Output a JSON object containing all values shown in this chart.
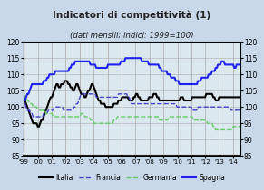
{
  "title": "Indicatori di competitività (1)",
  "subtitle": "(dati mensili; indici: 1999=100)",
  "bg_color": "#c8d8e8",
  "plot_bg_color": "#dce8f0",
  "ylim": [
    85,
    120
  ],
  "yticks": [
    85,
    90,
    95,
    100,
    105,
    110,
    115,
    120
  ],
  "years": [
    "'99",
    "'00",
    "'01",
    "'02",
    "'03",
    "'04",
    "'05",
    "'06",
    "'07",
    "'08",
    "'09",
    "'10",
    "'11",
    "'12",
    "'13",
    "'14"
  ],
  "legend": [
    {
      "label": "Italia",
      "color": "#000000",
      "ls": "-",
      "lw": 1.5
    },
    {
      "label": "Francia",
      "color": "#4444cc",
      "ls": "--",
      "lw": 1.0
    },
    {
      "label": "Germania",
      "color": "#66cc66",
      "ls": "--",
      "lw": 1.0
    },
    {
      "label": "Spagna",
      "color": "#2222ee",
      "ls": "-",
      "lw": 1.5
    }
  ],
  "italia": [
    103,
    102,
    101,
    100,
    99,
    98,
    97,
    96,
    95,
    95,
    95,
    95,
    94,
    94,
    95,
    96,
    96,
    97,
    98,
    99,
    100,
    101,
    102,
    103,
    103,
    104,
    105,
    106,
    107,
    107,
    106,
    106,
    107,
    107,
    107,
    108,
    108,
    108,
    107,
    107,
    106,
    106,
    105,
    105,
    106,
    107,
    107,
    106,
    105,
    104,
    104,
    104,
    103,
    103,
    104,
    105,
    105,
    106,
    107,
    107,
    106,
    105,
    104,
    103,
    102,
    102,
    101,
    101,
    101,
    101,
    100,
    100,
    100,
    100,
    100,
    100,
    100,
    101,
    101,
    101,
    101,
    102,
    102,
    102,
    103,
    103,
    103,
    103,
    103,
    103,
    102,
    102,
    102,
    102,
    103,
    103,
    104,
    104,
    103,
    103,
    102,
    102,
    102,
    102,
    102,
    102,
    102,
    103,
    103,
    103,
    103,
    104,
    104,
    104,
    103,
    103,
    102,
    102,
    102,
    102,
    102,
    102,
    102,
    102,
    102,
    102,
    102,
    102,
    102,
    102,
    102,
    102,
    102,
    102,
    103,
    103,
    103,
    102,
    102,
    102,
    102,
    102,
    102,
    102,
    103,
    103,
    103,
    103,
    103,
    103,
    103,
    103,
    103,
    103,
    103,
    103,
    104,
    104,
    104,
    104,
    104,
    104,
    103,
    103,
    102,
    102,
    102,
    103,
    103,
    103,
    103,
    103,
    103,
    103,
    103,
    103,
    103,
    103,
    103,
    103,
    103,
    103,
    103,
    103,
    103,
    103,
    103,
    103,
    103,
    103,
    103,
    103,
    103,
    103,
    103,
    103
  ],
  "francia": [
    103,
    101,
    100,
    99,
    99,
    99,
    98,
    98,
    97,
    97,
    97,
    97,
    97,
    97,
    97,
    97,
    97,
    98,
    98,
    98,
    98,
    99,
    99,
    99,
    99,
    99,
    100,
    100,
    100,
    100,
    100,
    100,
    100,
    100,
    99,
    99,
    99,
    99,
    99,
    99,
    99,
    99,
    99,
    100,
    100,
    101,
    101,
    102,
    103,
    104,
    104,
    104,
    104,
    104,
    104,
    104,
    104,
    104,
    104,
    104,
    104,
    104,
    103,
    103,
    103,
    103,
    103,
    103,
    103,
    103,
    103,
    103,
    103,
    103,
    103,
    103,
    103,
    103,
    103,
    103,
    103,
    104,
    104,
    104,
    104,
    104,
    104,
    104,
    104,
    103,
    103,
    102,
    101,
    101,
    101,
    101,
    101,
    101,
    101,
    101,
    101,
    101,
    101,
    101,
    101,
    101,
    101,
    101,
    101,
    101,
    101,
    101,
    101,
    101,
    101,
    101,
    101,
    101,
    101,
    101,
    101,
    101,
    101,
    101,
    101,
    101,
    101,
    101,
    101,
    101,
    101,
    100,
    100,
    100,
    100,
    100,
    100,
    100,
    100,
    100,
    100,
    100,
    100,
    100,
    99,
    99,
    99,
    99,
    99,
    100,
    100,
    100,
    100,
    100,
    100,
    100,
    100,
    100,
    100,
    100,
    100,
    100,
    100,
    100,
    100,
    100,
    100,
    100,
    100,
    100,
    100,
    100,
    100,
    100,
    100,
    100,
    100,
    99,
    99,
    99,
    99,
    99,
    99,
    99,
    99,
    99,
    99,
    99,
    99,
    99,
    99,
    99,
    99,
    99,
    99,
    99
  ],
  "germania": [
    104,
    103,
    103,
    102,
    102,
    101,
    101,
    101,
    100,
    100,
    100,
    100,
    99,
    99,
    99,
    99,
    99,
    99,
    99,
    98,
    98,
    98,
    98,
    98,
    98,
    97,
    97,
    97,
    97,
    97,
    97,
    97,
    97,
    97,
    97,
    97,
    97,
    97,
    97,
    97,
    97,
    97,
    97,
    97,
    97,
    97,
    97,
    97,
    97,
    98,
    98,
    98,
    97,
    97,
    97,
    97,
    97,
    96,
    96,
    96,
    95,
    95,
    95,
    95,
    95,
    95,
    95,
    95,
    95,
    95,
    95,
    95,
    95,
    95,
    95,
    95,
    95,
    96,
    96,
    96,
    97,
    97,
    97,
    97,
    97,
    97,
    97,
    97,
    97,
    97,
    97,
    97,
    97,
    97,
    97,
    97,
    97,
    97,
    97,
    97,
    97,
    97,
    97,
    97,
    97,
    97,
    97,
    97,
    97,
    97,
    97,
    97,
    97,
    97,
    97,
    97,
    96,
    96,
    96,
    96,
    96,
    96,
    96,
    96,
    97,
    97,
    97,
    97,
    97,
    97,
    97,
    97,
    97,
    97,
    97,
    97,
    97,
    97,
    97,
    97,
    97,
    97,
    97,
    97,
    97,
    96,
    96,
    96,
    96,
    96,
    96,
    96,
    96,
    96,
    96,
    96,
    96,
    95,
    95,
    95,
    95,
    95,
    94,
    94,
    93,
    93,
    93,
    93,
    93,
    93,
    93,
    93,
    93,
    93,
    93,
    93,
    93,
    93,
    93,
    94,
    94,
    94,
    94,
    94,
    94,
    94,
    94,
    94,
    94,
    94,
    94,
    94,
    94,
    94,
    94,
    94
  ],
  "spagna": [
    102,
    102,
    103,
    104,
    104,
    105,
    106,
    107,
    107,
    107,
    107,
    107,
    107,
    107,
    107,
    107,
    107,
    108,
    108,
    108,
    109,
    109,
    110,
    110,
    110,
    110,
    110,
    111,
    111,
    111,
    111,
    111,
    111,
    111,
    111,
    111,
    111,
    111,
    111,
    112,
    112,
    113,
    113,
    113,
    114,
    114,
    114,
    114,
    114,
    114,
    114,
    114,
    114,
    114,
    114,
    114,
    114,
    113,
    113,
    113,
    113,
    113,
    112,
    112,
    112,
    112,
    112,
    112,
    112,
    112,
    112,
    112,
    113,
    113,
    113,
    113,
    113,
    113,
    113,
    113,
    113,
    113,
    113,
    114,
    114,
    114,
    114,
    115,
    115,
    115,
    115,
    115,
    115,
    115,
    115,
    115,
    115,
    115,
    115,
    115,
    115,
    114,
    114,
    114,
    114,
    114,
    114,
    113,
    113,
    113,
    113,
    113,
    113,
    113,
    113,
    113,
    112,
    112,
    111,
    111,
    111,
    111,
    111,
    110,
    110,
    110,
    109,
    109,
    109,
    109,
    108,
    108,
    108,
    107,
    107,
    107,
    107,
    107,
    107,
    107,
    107,
    107,
    107,
    107,
    107,
    107,
    107,
    107,
    107,
    108,
    108,
    108,
    109,
    109,
    109,
    109,
    109,
    109,
    110,
    110,
    110,
    111,
    111,
    111,
    112,
    112,
    113,
    113,
    113,
    114,
    114,
    114,
    113,
    113,
    113,
    113,
    113,
    113,
    113,
    113,
    112,
    112,
    113,
    113,
    113,
    113,
    113,
    113,
    113,
    114,
    114,
    114,
    113,
    113,
    113,
    113
  ]
}
